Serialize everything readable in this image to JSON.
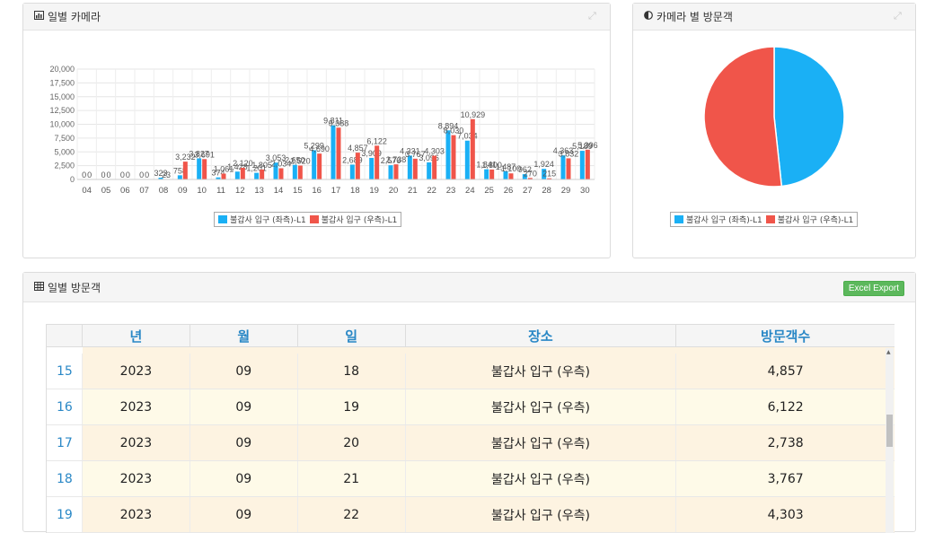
{
  "daily_camera_panel": {
    "title": "일별 카메라",
    "legend": [
      "불갑사 입구 (좌측)-L1",
      "불갑사 입구 (우측)-L1"
    ]
  },
  "camera_visitors_panel": {
    "title": "카메라 별 방문객",
    "legend": [
      "불갑사 입구 (좌측)-L1",
      "불갑사 입구 (우측)-L1"
    ]
  },
  "daily_visitors_panel": {
    "title": "일별 방문객",
    "excel_button": "Excel Export",
    "columns": [
      "",
      "년",
      "월",
      "일",
      "장소",
      "방문객수"
    ],
    "rows": [
      {
        "no": "15",
        "year": "2023",
        "month": "09",
        "day": "18",
        "place": "불갑사 입구 (우측)",
        "count": "4,857"
      },
      {
        "no": "16",
        "year": "2023",
        "month": "09",
        "day": "19",
        "place": "불갑사 입구 (우측)",
        "count": "6,122"
      },
      {
        "no": "17",
        "year": "2023",
        "month": "09",
        "day": "20",
        "place": "불갑사 입구 (우측)",
        "count": "2,738"
      },
      {
        "no": "18",
        "year": "2023",
        "month": "09",
        "day": "21",
        "place": "불갑사 입구 (우측)",
        "count": "3,767"
      },
      {
        "no": "19",
        "year": "2023",
        "month": "09",
        "day": "22",
        "place": "불갑사 입구 (우측)",
        "count": "4,303"
      }
    ]
  },
  "colors": {
    "left_series": "#1ab0f5",
    "right_series": "#f0554a",
    "header_text": "#2a88c6",
    "excel_green": "#5cb85c"
  },
  "chart_data": [
    {
      "type": "bar",
      "categories": [
        "04",
        "05",
        "06",
        "07",
        "08",
        "09",
        "10",
        "11",
        "12",
        "13",
        "14",
        "15",
        "16",
        "17",
        "18",
        "19",
        "20",
        "21",
        "22",
        "23",
        "24",
        "25",
        "26",
        "27",
        "28",
        "29",
        "30"
      ],
      "y_ticks": [
        "0",
        "2,500",
        "5,000",
        "7,500",
        "10,000",
        "12,500",
        "15,000",
        "17,500",
        "20,000"
      ],
      "ylim": [
        0,
        20000
      ],
      "series": [
        {
          "name": "불갑사 입구 (좌측)-L1",
          "values": [
            0,
            0,
            0,
            0,
            323,
            758,
            3827,
            374,
            1428,
            1201,
            3053,
            2650,
            5299,
            9811,
            2689,
            3909,
            2576,
            4331,
            3096,
            8894,
            7034,
            1841,
            1487,
            962,
            1924,
            4363,
            5189
          ]
        },
        {
          "name": "불갑사 입구 (우측)-L1",
          "values": [
            0,
            0,
            0,
            0,
            23,
            3232,
            3691,
            1061,
            2120,
            1805,
            2034,
            2520,
            4690,
            9388,
            4857,
            6122,
            2738,
            3767,
            4303,
            8030,
            10929,
            1800,
            1100,
            270,
            215,
            3832,
            5396
          ]
        }
      ],
      "data_labels": {
        "left": [
          "0",
          "0",
          "0",
          "0",
          "323",
          "758",
          "3,827",
          "374",
          "1,428",
          "1,201",
          "3,053",
          "2,650",
          "5,299",
          "9,811",
          "2,689",
          "3,909",
          "2,576",
          "4,331",
          "3,096",
          "8,894",
          "7,034",
          "1,841",
          "1,487",
          "962",
          "1,924",
          "4,363",
          "5,189"
        ],
        "right": [
          "0",
          "0",
          "0",
          "0",
          "23",
          "3,232",
          "3,691",
          "1,061",
          "2,120",
          "1,805",
          "2,034",
          "2,520",
          "4,690",
          "9,388",
          "4,857",
          "6,122",
          "2,738",
          "3,767",
          "4,303",
          "8,030",
          "10,929",
          "1,800",
          "1,100",
          "270",
          "215",
          "3,832",
          "5,396"
        ]
      },
      "grid": true,
      "legend_position": "bottom"
    },
    {
      "type": "pie",
      "slices": [
        {
          "name": "불갑사 입구 (좌측)-L1",
          "value": 48.3
        },
        {
          "name": "불갑사 입구 (우측)-L1",
          "value": 51.7
        }
      ],
      "legend_position": "bottom"
    }
  ]
}
